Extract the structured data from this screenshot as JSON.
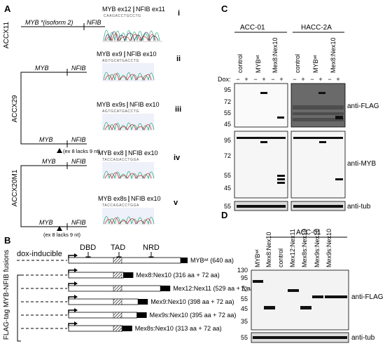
{
  "panel_labels": {
    "a": "A",
    "b": "B",
    "c": "C",
    "d": "D"
  },
  "panel_a": {
    "groups": [
      "ACCX11",
      "ACCX29",
      "ACCX20M1"
    ],
    "rows": [
      {
        "roman": "i",
        "gene_left": "MYB *(isoform 2)",
        "gene_right": "NFIB",
        "seq_label_left": "MYB ex12",
        "seq_label_right": "NFIB ex11",
        "seq": "CAAGACCTGCCTG",
        "note": ""
      },
      {
        "roman": "ii",
        "gene_left": "MYB",
        "gene_right": "NFIB",
        "seq_label_left": "MYB ex9",
        "seq_label_right": "NFIB ex10",
        "seq": "AGTGCATGACCTG",
        "note": ""
      },
      {
        "roman": "iii",
        "gene_left": "MYB",
        "gene_right": "NFIB",
        "seq_label_left": "MYB ex9s",
        "seq_label_right": "NFIB ex10",
        "seq": "AGTGCATGACCTG",
        "note": "(ex 8 lacks 9 nt)"
      },
      {
        "roman": "iv",
        "gene_left": "MYB",
        "gene_right": "NFIB",
        "seq_label_left": "MYB ex8",
        "seq_label_right": "NFIB ex10",
        "seq": "TACCAGACCTGGA",
        "note": ""
      },
      {
        "roman": "v",
        "gene_left": "MYB",
        "gene_right": "NFIB",
        "seq_label_left": "MYB ex8s",
        "seq_label_right": "NFIB ex10",
        "seq": "TACCAGACCTGGA",
        "note": "(ex 8 lacks 9 nt)"
      }
    ]
  },
  "panel_b": {
    "side_label": "FLAG-tag MYB-NFIB fusions",
    "top_label": "dox-inducible",
    "domains": [
      "DBD",
      "TAD",
      "NRD"
    ],
    "constructs": [
      {
        "label": "MYBʷᵗ (640 aa)",
        "frac": 1.0,
        "nfib": false
      },
      {
        "label": "Mex8:Nex10 (316 aa + 72 aa)",
        "frac": 0.49,
        "nfib": true
      },
      {
        "label": "Mex12:Nex11 (529 aa + 5 aa)",
        "frac": 0.82,
        "nfib": true
      },
      {
        "label": "Mex9:Nex10 (398 aa + 72 aa)",
        "frac": 0.62,
        "nfib": true
      },
      {
        "label": "Mex9s:Nex10 (395 aa + 72 aa)",
        "frac": 0.61,
        "nfib": true
      },
      {
        "label": "Mex8s:Nex10 (313 aa + 72 aa)",
        "frac": 0.48,
        "nfib": true
      }
    ]
  },
  "panel_c": {
    "cell_lines": [
      "ACC-01",
      "HACC-2A"
    ],
    "lane_groups": [
      "control",
      "MYBʷᵗ",
      "Mex8:Nex10"
    ],
    "dox_label": "Dox:",
    "dox_signs": [
      "−",
      "+",
      "−",
      "+",
      "−",
      "+"
    ],
    "blots": [
      {
        "label": "anti-FLAG",
        "markers": [
          "95",
          "72",
          "55",
          "45"
        ]
      },
      {
        "label": "anti-MYB",
        "markers": [
          "95",
          "72",
          "55",
          "45"
        ]
      },
      {
        "label": "anti-tub",
        "markers": [
          "55"
        ]
      }
    ]
  },
  "panel_d": {
    "cell_line": "ACC-01",
    "lanes": [
      "MYBʷᵗ",
      "Mex8:Nex10",
      "control",
      "Mex12:Nex11",
      "Mex8s:Nex10",
      "Mex9s:Nex10",
      "Mex9s:Nex10"
    ],
    "blots": [
      {
        "label": "anti-FLAG",
        "markers": [
          "130",
          "95",
          "72",
          "55",
          "45",
          "35"
        ]
      },
      {
        "label": "anti-tub",
        "markers": [
          "55"
        ]
      }
    ]
  }
}
